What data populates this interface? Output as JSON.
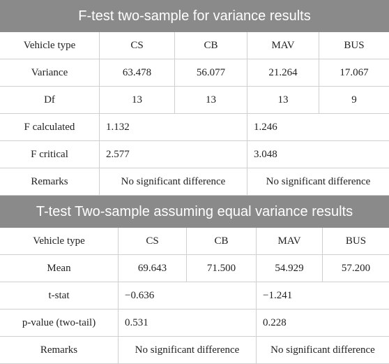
{
  "f_test": {
    "title": "F-test two-sample for variance results",
    "header": [
      "Vehicle type",
      "CS",
      "CB",
      "MAV",
      "BUS"
    ],
    "rows": [
      [
        "Variance",
        "63.478",
        "56.077",
        "21.264",
        "17.067"
      ],
      [
        "Df",
        "13",
        "13",
        "13",
        "9"
      ]
    ],
    "merged_rows": [
      [
        "F calculated",
        "1.132",
        "1.246"
      ],
      [
        "F critical",
        "2.577",
        "3.048"
      ],
      [
        "Remarks",
        "No significant difference",
        "No significant difference"
      ]
    ]
  },
  "t_test": {
    "title": "T-test Two-sample assuming equal variance results",
    "header": [
      "Vehicle type",
      "CS",
      "CB",
      "MAV",
      "BUS"
    ],
    "rows": [
      [
        "Mean",
        "69.643",
        "71.500",
        "54.929",
        "57.200"
      ]
    ],
    "merged_rows": [
      [
        "t-stat",
        "−0.636",
        "−1.241"
      ],
      [
        "p-value (two-tail)",
        "0.531",
        "0.228"
      ],
      [
        "Remarks",
        "No significant difference",
        "No significant difference"
      ]
    ]
  }
}
